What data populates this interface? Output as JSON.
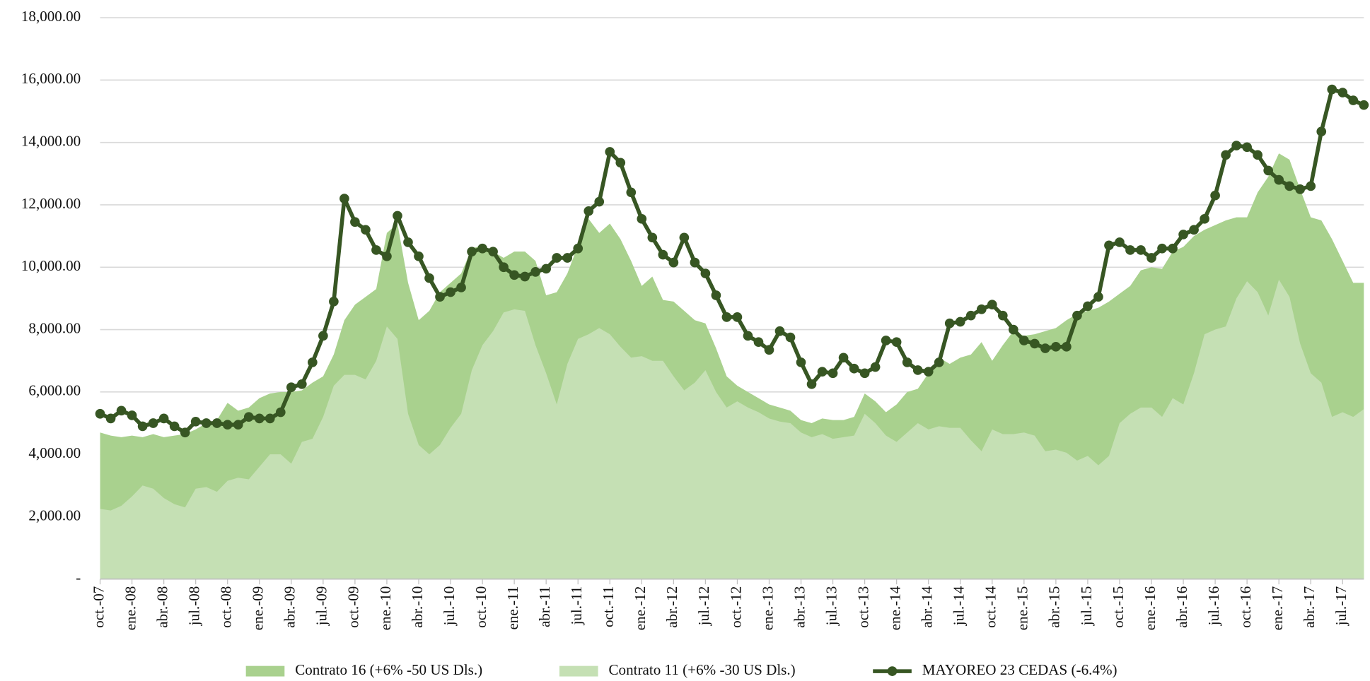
{
  "chart_data": {
    "type": "area-line",
    "categories": [
      "oct.-07",
      null,
      null,
      "ene.-08",
      null,
      null,
      "abr.-08",
      null,
      null,
      "jul.-08",
      null,
      null,
      "oct.-08",
      null,
      null,
      "ene.-09",
      null,
      null,
      "abr.-09",
      null,
      null,
      "jul.-09",
      null,
      null,
      "oct.-09",
      null,
      null,
      "ene.-10",
      null,
      null,
      "abr.-10",
      null,
      null,
      "jul.-10",
      null,
      null,
      "oct.-10",
      null,
      null,
      "ene.-11",
      null,
      null,
      "abr.-11",
      null,
      null,
      "jul.-11",
      null,
      null,
      "oct.-11",
      null,
      null,
      "ene.-12",
      null,
      null,
      "abr.-12",
      null,
      null,
      "jul.-12",
      null,
      null,
      "oct.-12",
      null,
      null,
      "ene.-13",
      null,
      null,
      "abr.-13",
      null,
      null,
      "jul.-13",
      null,
      null,
      "oct.-13",
      null,
      null,
      "ene.-14",
      null,
      null,
      "abr.-14",
      null,
      null,
      "jul.-14",
      null,
      null,
      "oct.-14",
      null,
      null,
      "ene.-15",
      null,
      null,
      "abr.-15",
      null,
      null,
      "jul.-15",
      null,
      null,
      "oct.-15",
      null,
      null,
      "ene.-16",
      null,
      null,
      "abr.-16",
      null,
      null,
      "jul.-16",
      null,
      null,
      "oct.-16",
      null,
      null,
      "ene.-17",
      null,
      null,
      "abr.-17",
      null,
      null,
      "jul.-17",
      null,
      null
    ],
    "series": [
      {
        "name": "Contrato 16 (+6% -50 US Dls.)",
        "kind": "area",
        "color": "#a9d18e",
        "values": [
          4700,
          4600,
          4550,
          4600,
          4550,
          4650,
          4550,
          4600,
          4650,
          4800,
          5000,
          5100,
          5650,
          5400,
          5500,
          5800,
          5950,
          6000,
          6000,
          6050,
          6300,
          6500,
          7200,
          8300,
          8800,
          9050,
          9300,
          11100,
          11400,
          9500,
          8300,
          8600,
          9200,
          9500,
          9800,
          10600,
          10700,
          10500,
          10300,
          10500,
          10500,
          10200,
          9100,
          9200,
          9800,
          10700,
          11550,
          11100,
          11400,
          10900,
          10200,
          9400,
          9700,
          8950,
          8900,
          8600,
          8300,
          8200,
          7400,
          6500,
          6200,
          6000,
          5800,
          5600,
          5500,
          5400,
          5100,
          5000,
          5150,
          5100,
          5100,
          5200,
          5950,
          5700,
          5350,
          5600,
          6000,
          6100,
          6600,
          7100,
          6900,
          7100,
          7200,
          7600,
          7000,
          7500,
          7950,
          7800,
          7850,
          7950,
          8050,
          8300,
          8500,
          8600,
          8700,
          8900,
          9150,
          9400,
          9900,
          10000,
          9950,
          10500,
          10650,
          11000,
          11200,
          11350,
          11500,
          11600,
          11600,
          12400,
          12900,
          13650,
          13450,
          12500,
          11600,
          11500,
          10900,
          10200,
          9500,
          9500
        ]
      },
      {
        "name": "Contrato 11 (+6% -30 US Dls.)",
        "kind": "area",
        "color": "#c5e0b4",
        "values": [
          2250,
          2200,
          2350,
          2650,
          3000,
          2900,
          2600,
          2400,
          2300,
          2900,
          2950,
          2800,
          3150,
          3250,
          3200,
          3600,
          4000,
          4000,
          3700,
          4400,
          4500,
          5200,
          6200,
          6550,
          6550,
          6400,
          7000,
          8100,
          7700,
          5300,
          4300,
          4000,
          4300,
          4850,
          5300,
          6700,
          7500,
          7950,
          8550,
          8650,
          8600,
          7500,
          6600,
          5600,
          6900,
          7700,
          7850,
          8050,
          7850,
          7450,
          7100,
          7150,
          7000,
          7000,
          6500,
          6050,
          6300,
          6700,
          6000,
          5500,
          5700,
          5500,
          5350,
          5150,
          5050,
          5000,
          4700,
          4550,
          4650,
          4500,
          4550,
          4600,
          5300,
          5000,
          4600,
          4400,
          4700,
          5000,
          4800,
          4900,
          4850,
          4850,
          4450,
          4100,
          4800,
          4650,
          4650,
          4700,
          4600,
          4100,
          4150,
          4050,
          3800,
          3950,
          3650,
          3950,
          5000,
          5300,
          5500,
          5500,
          5200,
          5800,
          5600,
          6600,
          7850,
          8000,
          8100,
          9000,
          9550,
          9200,
          8450,
          9600,
          9050,
          7550,
          6600,
          6300,
          5200,
          5350,
          5200,
          5450
        ]
      },
      {
        "name": "MAYOREO 23 CEDAS (-6.4%)",
        "kind": "line",
        "color": "#375623",
        "values": [
          5300,
          5150,
          5400,
          5250,
          4900,
          5000,
          5150,
          4900,
          4700,
          5050,
          5000,
          5000,
          4950,
          4950,
          5200,
          5150,
          5150,
          5350,
          6150,
          6250,
          6950,
          7800,
          8900,
          12200,
          11450,
          11200,
          10550,
          10350,
          11650,
          10800,
          10350,
          9650,
          9050,
          9200,
          9350,
          10500,
          10600,
          10500,
          10000,
          9750,
          9700,
          9850,
          9950,
          10300,
          10300,
          10600,
          11800,
          12100,
          13700,
          13350,
          12400,
          11550,
          10950,
          10400,
          10150,
          10950,
          10150,
          9800,
          9100,
          8400,
          8400,
          7800,
          7600,
          7350,
          7950,
          7750,
          6950,
          6250,
          6650,
          6600,
          7100,
          6750,
          6600,
          6800,
          7650,
          7600,
          6950,
          6700,
          6650,
          6950,
          8200,
          8250,
          8450,
          8650,
          8800,
          8450,
          8000,
          7650,
          7550,
          7400,
          7450,
          7450,
          8450,
          8750,
          9050,
          10700,
          10800,
          10550,
          10550,
          10300,
          10600,
          10600,
          11050,
          11200,
          11550,
          12300,
          13600,
          13900,
          13850,
          13600,
          13100,
          12800,
          12600,
          12500,
          12600,
          14350,
          15700,
          15600,
          15350,
          15200
        ]
      }
    ],
    "ylim": [
      0,
      18000
    ],
    "yticks": [
      {
        "value": 0,
        "label": "-"
      },
      {
        "value": 2000,
        "label": "2,000.00"
      },
      {
        "value": 4000,
        "label": "4,000.00"
      },
      {
        "value": 6000,
        "label": "6,000.00"
      },
      {
        "value": 8000,
        "label": "8,000.00"
      },
      {
        "value": 10000,
        "label": "10,000.00"
      },
      {
        "value": 12000,
        "label": "12,000.00"
      },
      {
        "value": 14000,
        "label": "14,000.00"
      },
      {
        "value": 16000,
        "label": "16,000.00"
      },
      {
        "value": 18000,
        "label": "18,000.00"
      }
    ],
    "grid": true,
    "legend": "bottom"
  }
}
